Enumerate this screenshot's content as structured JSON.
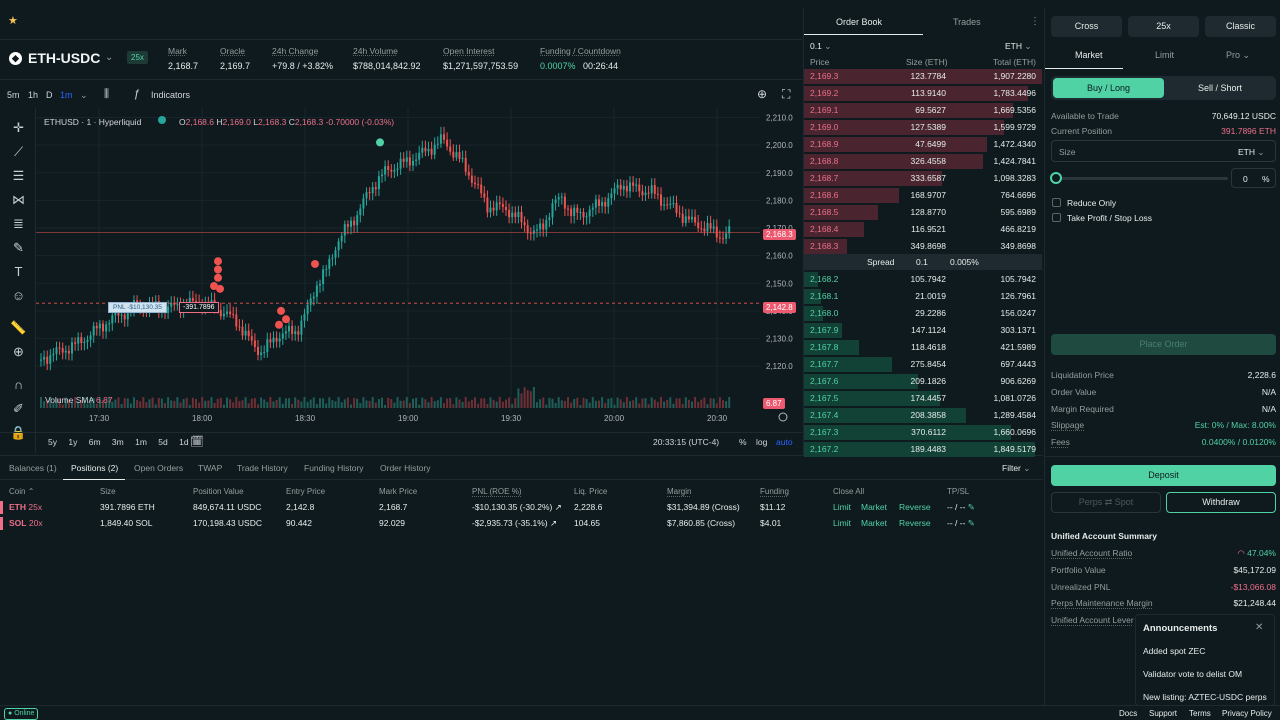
{
  "market": {
    "pair": "ETH-USDC",
    "leverage": "25x",
    "stats": [
      {
        "label": "Mark",
        "value": "2,168.7"
      },
      {
        "label": "Oracle",
        "value": "2,169.7"
      },
      {
        "label": "24h Change",
        "value": "+79.8 / +3.82%"
      },
      {
        "label": "24h Volume",
        "value": "$788,014,842.92"
      },
      {
        "label": "Open Interest",
        "value": "$1,271,597,753.59"
      },
      {
        "label": "Funding / Countdown",
        "value": "0.0007%",
        "value2": "00:26:44"
      }
    ]
  },
  "chart_toolbar": {
    "timeframes": [
      "5m",
      "1h",
      "D",
      "1m"
    ],
    "indicators": "Indicators"
  },
  "chart": {
    "symbol": "ETHUSD · 1 · Hyperliquid",
    "ohlc": {
      "o": "2,168.6",
      "h": "2,169.0",
      "l": "2,168.3",
      "c": "2,168.3",
      "chg": "-0.70000 (-0.03%)"
    },
    "price_ticks": [
      "2,210.0",
      "2,200.0",
      "2,190.0",
      "2,180.0",
      "2,170.0",
      "2,160.0",
      "2,150.0",
      "2,140.0",
      "2,130.0",
      "2,120.0"
    ],
    "time_ticks": [
      "17:30",
      "18:00",
      "18:30",
      "19:00",
      "19:30",
      "20:00",
      "20:30"
    ],
    "last_price": "2,168.3",
    "entry_price_tag": "2,142.8",
    "pnl_label": "PNL -$10,130.35",
    "pnl_size": "-391.7896",
    "volume_label": "Volume SMA",
    "volume_value": "6.87",
    "volume_tag": "6.87",
    "ranges": [
      "5y",
      "1y",
      "6m",
      "3m",
      "1m",
      "5d",
      "1d"
    ],
    "clock": "20:33:15 (UTC-4)",
    "pct": "%",
    "log": "log",
    "auto": "auto"
  },
  "orderbook": {
    "tabs": [
      "Order Book",
      "Trades"
    ],
    "tick": "0.1",
    "asset": "ETH",
    "headers": [
      "Price",
      "Size (ETH)",
      "Total (ETH)"
    ],
    "asks": [
      {
        "p": "2,169.3",
        "s": "123.7784",
        "t": "1,907.2280",
        "w": 1.0
      },
      {
        "p": "2,169.2",
        "s": "113.9140",
        "t": "1,783.4496",
        "w": 0.94
      },
      {
        "p": "2,169.1",
        "s": "69.5627",
        "t": "1,669.5356",
        "w": 0.88
      },
      {
        "p": "2,169.0",
        "s": "127.5389",
        "t": "1,599.9729",
        "w": 0.84
      },
      {
        "p": "2,168.9",
        "s": "47.6499",
        "t": "1,472.4340",
        "w": 0.77
      },
      {
        "p": "2,168.8",
        "s": "326.4558",
        "t": "1,424.7841",
        "w": 0.75
      },
      {
        "p": "2,168.7",
        "s": "333.6587",
        "t": "1,098.3283",
        "w": 0.58
      },
      {
        "p": "2,168.6",
        "s": "168.9707",
        "t": "764.6696",
        "w": 0.4
      },
      {
        "p": "2,168.5",
        "s": "128.8770",
        "t": "595.6989",
        "w": 0.31
      },
      {
        "p": "2,168.4",
        "s": "116.9521",
        "t": "466.8219",
        "w": 0.25
      },
      {
        "p": "2,168.3",
        "s": "349.8698",
        "t": "349.8698",
        "w": 0.18
      }
    ],
    "spread": {
      "label": "Spread",
      "value": "0.1",
      "pct": "0.005%"
    },
    "bids": [
      {
        "p": "2,168.2",
        "s": "105.7942",
        "t": "105.7942",
        "w": 0.06
      },
      {
        "p": "2,168.1",
        "s": "21.0019",
        "t": "126.7961",
        "w": 0.07
      },
      {
        "p": "2,168.0",
        "s": "29.2286",
        "t": "156.0247",
        "w": 0.08
      },
      {
        "p": "2,167.9",
        "s": "147.1124",
        "t": "303.1371",
        "w": 0.16
      },
      {
        "p": "2,167.8",
        "s": "118.4618",
        "t": "421.5989",
        "w": 0.23
      },
      {
        "p": "2,167.7",
        "s": "275.8454",
        "t": "697.4443",
        "w": 0.37
      },
      {
        "p": "2,167.6",
        "s": "209.1826",
        "t": "906.6269",
        "w": 0.48
      },
      {
        "p": "2,167.5",
        "s": "174.4457",
        "t": "1,081.0726",
        "w": 0.57
      },
      {
        "p": "2,167.4",
        "s": "208.3858",
        "t": "1,289.4584",
        "w": 0.68
      },
      {
        "p": "2,167.3",
        "s": "370.6112",
        "t": "1,660.0696",
        "w": 0.87
      },
      {
        "p": "2,167.2",
        "s": "189.4483",
        "t": "1,849.5179",
        "w": 0.97
      }
    ]
  },
  "trade_panel": {
    "margin_mode": "Cross",
    "leverage": "25x",
    "mode": "Classic",
    "order_types": [
      "Market",
      "Limit",
      "Pro"
    ],
    "buy": "Buy / Long",
    "sell": "Sell / Short",
    "available_label": "Available to Trade",
    "available_value": "70,649.12 USDC",
    "position_label": "Current Position",
    "position_value": "391.7896 ETH",
    "size_placeholder": "Size",
    "size_unit": "ETH",
    "slider_value": "0",
    "slider_unit": "%",
    "reduce_only": "Reduce Only",
    "tpsl": "Take Profit / Stop Loss",
    "place_order": "Place Order",
    "details": [
      {
        "k": "Liquidation Price",
        "v": "2,228.6"
      },
      {
        "k": "Order Value",
        "v": "N/A"
      },
      {
        "k": "Margin Required",
        "v": "N/A"
      },
      {
        "k": "Slippage",
        "v": "Est: 0% / Max: 8.00%"
      },
      {
        "k": "Fees",
        "v": "0.0400% / 0.0120%"
      }
    ],
    "deposit": "Deposit",
    "perps_spot": "Perps ⇄ Spot",
    "withdraw": "Withdraw",
    "summary_title": "Unified Account Summary",
    "summary": [
      {
        "k": "Unified Account Ratio",
        "v": "47.04%"
      },
      {
        "k": "Portfolio Value",
        "v": "$45,172.09"
      },
      {
        "k": "Unrealized PNL",
        "v": "-$13,066.08"
      },
      {
        "k": "Perps Maintenance Margin",
        "v": "$21,248.44"
      },
      {
        "k": "Unified Account Lever",
        "v": ""
      }
    ]
  },
  "announcements": {
    "title": "Announcements",
    "items": [
      "Added spot ZEC",
      "Validator vote to delist OM",
      "New listing: AZTEC-USDC perps"
    ]
  },
  "bottom": {
    "tabs": [
      "Balances (1)",
      "Positions (2)",
      "Open Orders",
      "TWAP",
      "Trade History",
      "Funding History",
      "Order History"
    ],
    "filter": "Filter",
    "headers": [
      "Coin",
      "Size",
      "Position Value",
      "Entry Price",
      "Mark Price",
      "PNL (ROE %)",
      "Liq. Price",
      "Margin",
      "Funding",
      "Close All",
      "TP/SL"
    ],
    "rows": [
      {
        "coin": "ETH",
        "lev": "25x",
        "size": "391.7896 ETH",
        "value": "849,674.11 USDC",
        "entry": "2,142.8",
        "mark": "2,168.7",
        "pnl": "-$10,130.35 (-30.2%)",
        "liq": "2,228.6",
        "margin": "$31,394.89 (Cross)",
        "funding": "$11.12",
        "a1": "Limit",
        "a2": "Market",
        "a3": "Reverse",
        "tpsl": "-- / --"
      },
      {
        "coin": "SOL",
        "lev": "20x",
        "size": "1,849.40 SOL",
        "value": "170,198.43 USDC",
        "entry": "90.442",
        "mark": "92.029",
        "pnl": "-$2,935.73 (-35.1%)",
        "liq": "104.65",
        "margin": "$7,860.85 (Cross)",
        "funding": "$4.01",
        "a1": "Limit",
        "a2": "Market",
        "a3": "Reverse",
        "tpsl": "-- / --"
      }
    ]
  },
  "footer": {
    "status": "Online",
    "links": [
      "Docs",
      "Support",
      "Terms",
      "Privacy Policy"
    ]
  },
  "colors": {
    "green": "#50d2a5",
    "red": "#ed7088",
    "bg": "#0f1a1f"
  }
}
